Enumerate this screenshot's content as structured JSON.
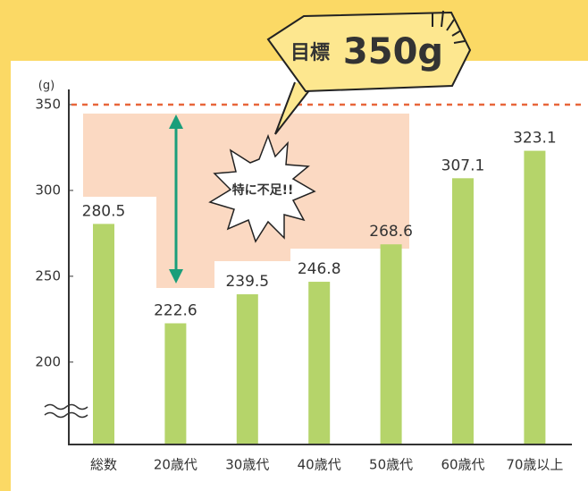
{
  "chart_data": {
    "type": "bar",
    "y_unit": "(g)",
    "categories": [
      "総数",
      "20歳代",
      "30歳代",
      "40歳代",
      "50歳代",
      "60歳代",
      "70歳以上"
    ],
    "values": [
      280.5,
      222.6,
      239.5,
      246.8,
      268.6,
      307.1,
      323.1
    ],
    "color": "#b5d46a",
    "ylim": [
      152,
      358
    ],
    "yticks": [
      200,
      250,
      300,
      350
    ],
    "target": 350,
    "target_color": "#e8663a",
    "target_label": "目標",
    "target_value_label": "350g",
    "callout": "特に不足!!"
  }
}
